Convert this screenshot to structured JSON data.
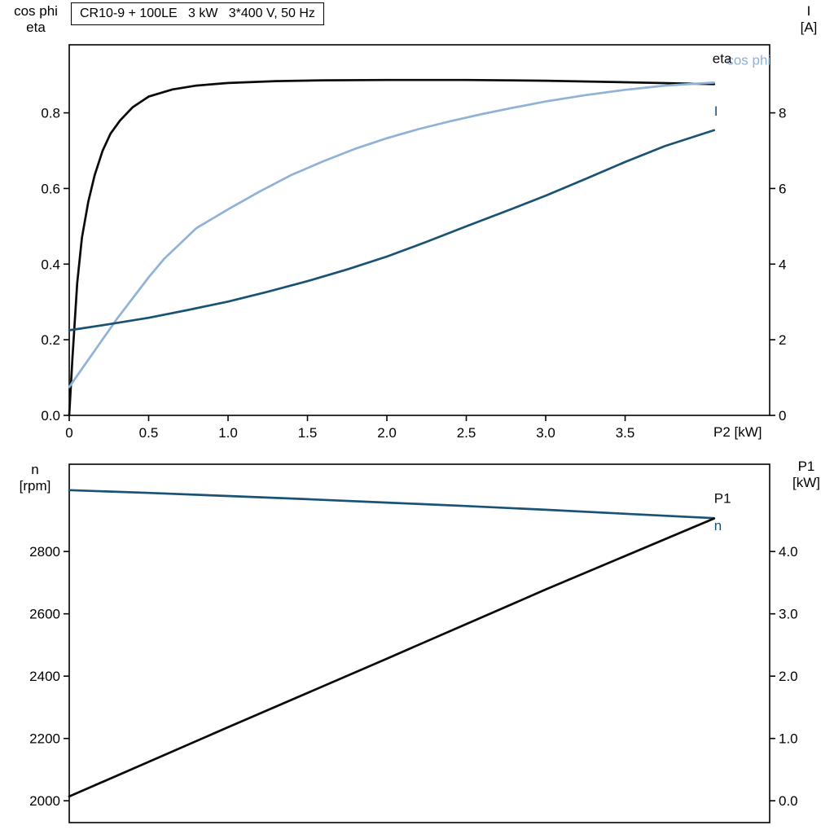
{
  "colors": {
    "black": "#0a0a0a",
    "dark_blue": "#1a5276",
    "light_blue": "#8fb2d6",
    "axis": "#000000",
    "background": "#ffffff"
  },
  "chart_data": [
    {
      "name": "motor-electrical",
      "type": "line",
      "title": "CR10-9 + 100LE   3 kW   3*400 V, 50 Hz",
      "xlabel": "P2 [kW]",
      "ylabel_left": "cos phi\neta",
      "ylabel_right": "I\n[A]",
      "xlim": [
        0,
        4.41
      ],
      "ylim_left": [
        0,
        0.98
      ],
      "ylim_right": [
        0,
        9.8
      ],
      "axes": {
        "left": {
          "ticks": [
            0,
            0.2,
            0.4,
            0.6,
            0.8
          ],
          "labels": [
            "0.0",
            "0.2",
            "0.4",
            "0.6",
            "0.8"
          ]
        },
        "right": {
          "ticks": [
            0,
            2,
            4,
            6,
            8
          ],
          "labels": [
            "0",
            "2",
            "4",
            "6",
            "8"
          ]
        },
        "x": {
          "ticks": [
            0,
            0.5,
            1,
            1.5,
            2,
            2.5,
            3,
            3.5
          ],
          "labels": [
            "0",
            "0.5",
            "1.0",
            "1.5",
            "2.0",
            "2.5",
            "3.0",
            "3.5"
          ]
        }
      },
      "series": [
        {
          "name": "eta",
          "axis": "left",
          "color": "#0a0a0a",
          "points": [
            [
              0,
              0
            ],
            [
              0.02,
              0.15
            ],
            [
              0.05,
              0.35
            ],
            [
              0.08,
              0.47
            ],
            [
              0.12,
              0.565
            ],
            [
              0.16,
              0.635
            ],
            [
              0.21,
              0.7
            ],
            [
              0.26,
              0.745
            ],
            [
              0.32,
              0.78
            ],
            [
              0.4,
              0.815
            ],
            [
              0.5,
              0.843
            ],
            [
              0.65,
              0.862
            ],
            [
              0.8,
              0.872
            ],
            [
              1.0,
              0.879
            ],
            [
              1.3,
              0.884
            ],
            [
              1.6,
              0.886
            ],
            [
              2.0,
              0.887
            ],
            [
              2.5,
              0.887
            ],
            [
              3.0,
              0.885
            ],
            [
              3.5,
              0.881
            ],
            [
              4.06,
              0.876
            ]
          ]
        },
        {
          "name": "cos-phi",
          "axis": "left",
          "color": "#8fb2d6",
          "points": [
            [
              0,
              0.075
            ],
            [
              0.1,
              0.135
            ],
            [
              0.2,
              0.195
            ],
            [
              0.3,
              0.255
            ],
            [
              0.4,
              0.31
            ],
            [
              0.5,
              0.365
            ],
            [
              0.6,
              0.415
            ],
            [
              0.7,
              0.455
            ],
            [
              0.8,
              0.495
            ],
            [
              0.9,
              0.52
            ],
            [
              1.0,
              0.545
            ],
            [
              1.2,
              0.592
            ],
            [
              1.4,
              0.636
            ],
            [
              1.6,
              0.672
            ],
            [
              1.8,
              0.705
            ],
            [
              2.0,
              0.733
            ],
            [
              2.2,
              0.757
            ],
            [
              2.4,
              0.778
            ],
            [
              2.6,
              0.797
            ],
            [
              2.8,
              0.814
            ],
            [
              3.0,
              0.83
            ],
            [
              3.25,
              0.847
            ],
            [
              3.5,
              0.861
            ],
            [
              3.75,
              0.872
            ],
            [
              4.06,
              0.88
            ]
          ]
        },
        {
          "name": "current-I",
          "axis": "right",
          "color": "#1a5276",
          "points": [
            [
              0,
              2.25
            ],
            [
              0.25,
              2.41
            ],
            [
              0.5,
              2.58
            ],
            [
              0.75,
              2.79
            ],
            [
              1.0,
              3.01
            ],
            [
              1.25,
              3.27
            ],
            [
              1.5,
              3.55
            ],
            [
              1.75,
              3.86
            ],
            [
              2.0,
              4.2
            ],
            [
              2.25,
              4.59
            ],
            [
              2.5,
              5.0
            ],
            [
              2.75,
              5.4
            ],
            [
              3.0,
              5.81
            ],
            [
              3.25,
              6.25
            ],
            [
              3.5,
              6.7
            ],
            [
              3.75,
              7.12
            ],
            [
              4.06,
              7.54
            ]
          ]
        }
      ],
      "annotations": [
        {
          "text": "cos phi",
          "x": 4.14,
          "y": 0.927,
          "axis": "left",
          "color": "#8fb2d6"
        },
        {
          "text": "eta",
          "x": 4.05,
          "y": 0.932,
          "axis": "left",
          "color": "#0a0a0a"
        },
        {
          "text": "I",
          "x": 4.06,
          "y": 7.93,
          "axis": "right",
          "color": "#1a5276"
        }
      ]
    },
    {
      "name": "motor-mechanical",
      "type": "line",
      "title": "",
      "xlabel": "",
      "ylabel_left": "n\n[rpm]",
      "ylabel_right": "P1\n[kW]",
      "xlim": [
        0,
        4.41
      ],
      "ylim_left": [
        1930,
        3080
      ],
      "ylim_right": [
        -0.35,
        5.4
      ],
      "axes": {
        "left": {
          "ticks": [
            2000,
            2200,
            2400,
            2600,
            2800
          ],
          "labels": [
            "2000",
            "2200",
            "2400",
            "2600",
            "2800"
          ]
        },
        "right": {
          "ticks": [
            0,
            1,
            2,
            3,
            4
          ],
          "labels": [
            "0.0",
            "1.0",
            "2.0",
            "3.0",
            "4.0"
          ]
        },
        "x": {
          "ticks": [],
          "labels": []
        }
      },
      "series": [
        {
          "name": "speed-n",
          "axis": "left",
          "color": "#1a5276",
          "points": [
            [
              0,
              2997
            ],
            [
              0.5,
              2988
            ],
            [
              1.0,
              2978
            ],
            [
              1.5,
              2968
            ],
            [
              2.0,
              2957
            ],
            [
              2.5,
              2946
            ],
            [
              3.0,
              2934
            ],
            [
              3.5,
              2921
            ],
            [
              4.06,
              2907
            ]
          ]
        },
        {
          "name": "power-P1",
          "axis": "right",
          "color": "#0a0a0a",
          "points": [
            [
              0,
              0.07
            ],
            [
              1.0,
              1.18
            ],
            [
              2.0,
              2.28
            ],
            [
              3.0,
              3.39
            ],
            [
              4.06,
              4.53
            ]
          ]
        }
      ],
      "annotations": [
        {
          "text": "P1",
          "x": 4.06,
          "y": 4.78,
          "axis": "right",
          "color": "#0a0a0a"
        },
        {
          "text": "n",
          "x": 4.06,
          "y": 2868,
          "axis": "left",
          "color": "#1a5276"
        }
      ]
    }
  ]
}
